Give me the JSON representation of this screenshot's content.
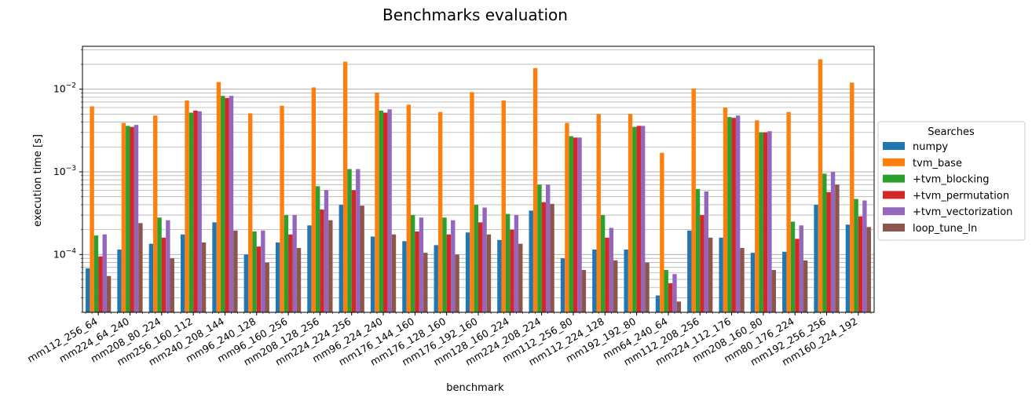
{
  "chart_data": {
    "type": "bar",
    "title": "Benchmarks evaluation",
    "xlabel": "benchmark",
    "ylabel": "execution time [s]",
    "yscale": "log",
    "ylim": [
      2e-05,
      0.033
    ],
    "y_ticks": [
      {
        "value": 0.0001,
        "base": "10",
        "exp": "−4"
      },
      {
        "value": 0.001,
        "base": "10",
        "exp": "−3"
      },
      {
        "value": 0.01,
        "base": "10",
        "exp": "−2"
      }
    ],
    "grid": "y-major-and-minor",
    "legend": {
      "title": "Searches",
      "placement": "outside-right"
    },
    "colors": [
      "#1f77b4",
      "#ff7f0e",
      "#2ca02c",
      "#d62728",
      "#9467bd",
      "#8c564b"
    ],
    "categories": [
      "mm112_256_64",
      "mm224_64_240",
      "mm208_80_224",
      "mm256_160_112",
      "mm240_208_144",
      "mm96_240_128",
      "mm96_160_256",
      "mm208_128_256",
      "mm224_224_256",
      "mm96_224_240",
      "mm176_144_160",
      "mm176_128_160",
      "mm176_192_160",
      "mm128_160_224",
      "mm224_208_224",
      "mm112_256_80",
      "mm112_224_128",
      "mm192_192_80",
      "mm64_240_64",
      "mm112_208_256",
      "mm224_112_176",
      "mm208_160_80",
      "mm80_176_224",
      "mm192_256_256",
      "mm160_224_192"
    ],
    "series": [
      {
        "name": "numpy",
        "values": [
          6.8e-05,
          0.000115,
          0.000135,
          0.000175,
          0.000245,
          0.0001,
          0.00014,
          0.000225,
          0.0004,
          0.000165,
          0.000145,
          0.00013,
          0.000185,
          0.00015,
          0.00034,
          9e-05,
          0.000115,
          0.000115,
          3.2e-05,
          0.000195,
          0.00016,
          0.000105,
          0.000108,
          0.0004,
          0.00023
        ]
      },
      {
        "name": "tvm_base",
        "values": [
          0.0062,
          0.0039,
          0.0048,
          0.0073,
          0.0122,
          0.0051,
          0.0063,
          0.0105,
          0.0215,
          0.0091,
          0.0065,
          0.0053,
          0.0092,
          0.0073,
          0.018,
          0.0039,
          0.005,
          0.005,
          0.0017,
          0.0102,
          0.006,
          0.0042,
          0.0053,
          0.023,
          0.012
        ]
      },
      {
        "name": "+tvm_blocking",
        "values": [
          0.00017,
          0.0036,
          0.00028,
          0.0052,
          0.0083,
          0.00019,
          0.0003,
          0.00067,
          0.00108,
          0.0055,
          0.0003,
          0.00028,
          0.0004,
          0.00031,
          0.0007,
          0.0027,
          0.0003,
          0.0035,
          6.5e-05,
          0.00062,
          0.0046,
          0.003,
          0.00025,
          0.00095,
          0.00047
        ]
      },
      {
        "name": "+tvm_permutation",
        "values": [
          9.5e-05,
          0.0035,
          0.00016,
          0.0055,
          0.0078,
          0.000125,
          0.000175,
          0.00035,
          0.0006,
          0.0052,
          0.00019,
          0.000175,
          0.000245,
          0.0002,
          0.00043,
          0.0026,
          0.00016,
          0.0036,
          4.5e-05,
          0.0003,
          0.0045,
          0.003,
          0.000155,
          0.00057,
          0.00029
        ]
      },
      {
        "name": "+tvm_vectorization",
        "values": [
          0.000175,
          0.0037,
          0.00026,
          0.0054,
          0.0083,
          0.000195,
          0.0003,
          0.0006,
          0.00108,
          0.0057,
          0.00028,
          0.00026,
          0.00037,
          0.0003,
          0.0007,
          0.0026,
          0.00021,
          0.0036,
          5.8e-05,
          0.00058,
          0.0048,
          0.0031,
          0.000225,
          0.001,
          0.00045
        ]
      },
      {
        "name": "loop_tune_ln",
        "values": [
          5.5e-05,
          0.00024,
          9e-05,
          0.00014,
          0.000195,
          8e-05,
          0.00012,
          0.00026,
          0.00039,
          0.000175,
          0.000105,
          0.0001,
          0.000175,
          0.000135,
          0.00041,
          6.5e-05,
          8.5e-05,
          8e-05,
          2.7e-05,
          0.00016,
          0.00012,
          6.5e-05,
          8.5e-05,
          0.0007,
          0.000215
        ]
      }
    ]
  }
}
